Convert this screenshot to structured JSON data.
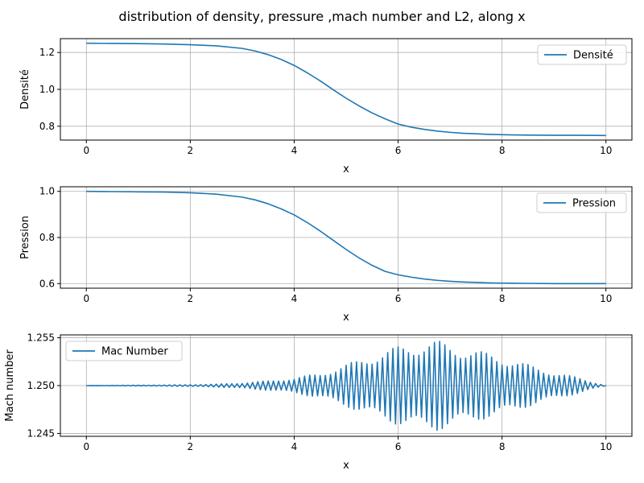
{
  "suptitle": "distribution of density, pressure ,mach number and L2, along x",
  "colors": {
    "line": "#1f77b4",
    "grid": "#b0b0b0",
    "axes": "#000000"
  },
  "chart_data": [
    {
      "type": "line",
      "xlabel": "x",
      "ylabel": "Densité",
      "xlim": [
        -0.5,
        10.5
      ],
      "ylim": [
        0.725,
        1.275
      ],
      "xticks": [
        0,
        2,
        4,
        6,
        8,
        10
      ],
      "xtick_labels": [
        "0",
        "2",
        "4",
        "6",
        "8",
        "10"
      ],
      "yticks": [
        0.8,
        1.0,
        1.2
      ],
      "ytick_labels": [
        "0.8",
        "1.0",
        "1.2"
      ],
      "grid": true,
      "legend_position": "upper right",
      "series": [
        {
          "name": "Densité",
          "x": [
            0,
            0.5,
            1,
            1.5,
            2,
            2.5,
            3,
            3.25,
            3.5,
            3.75,
            4,
            4.25,
            4.5,
            4.75,
            5,
            5.25,
            5.5,
            5.75,
            6,
            6.25,
            6.5,
            6.75,
            7,
            7.25,
            7.5,
            7.75,
            8,
            8.5,
            9,
            9.5,
            10
          ],
          "y": [
            1.25,
            1.249,
            1.248,
            1.246,
            1.242,
            1.236,
            1.222,
            1.208,
            1.188,
            1.162,
            1.13,
            1.09,
            1.046,
            0.998,
            0.952,
            0.91,
            0.872,
            0.84,
            0.812,
            0.795,
            0.783,
            0.774,
            0.767,
            0.762,
            0.759,
            0.756,
            0.754,
            0.752,
            0.751,
            0.751,
            0.75
          ]
        }
      ]
    },
    {
      "type": "line",
      "xlabel": "x",
      "ylabel": "Pression",
      "xlim": [
        -0.5,
        10.5
      ],
      "ylim": [
        0.58,
        1.02
      ],
      "xticks": [
        0,
        2,
        4,
        6,
        8,
        10
      ],
      "xtick_labels": [
        "0",
        "2",
        "4",
        "6",
        "8",
        "10"
      ],
      "yticks": [
        0.6,
        0.8,
        1.0
      ],
      "ytick_labels": [
        "0.6",
        "0.8",
        "1.0"
      ],
      "grid": true,
      "legend_position": "upper right",
      "series": [
        {
          "name": "Pression",
          "x": [
            0,
            0.5,
            1,
            1.5,
            2,
            2.5,
            3,
            3.25,
            3.5,
            3.75,
            4,
            4.25,
            4.5,
            4.75,
            5,
            5.25,
            5.5,
            5.75,
            6,
            6.25,
            6.5,
            6.75,
            7,
            7.25,
            7.5,
            7.75,
            8,
            8.5,
            9,
            9.5,
            10
          ],
          "y": [
            1.0,
            0.999,
            0.998,
            0.997,
            0.994,
            0.988,
            0.975,
            0.963,
            0.946,
            0.924,
            0.898,
            0.865,
            0.828,
            0.788,
            0.748,
            0.711,
            0.679,
            0.653,
            0.638,
            0.628,
            0.62,
            0.614,
            0.61,
            0.607,
            0.605,
            0.603,
            0.602,
            0.601,
            0.6,
            0.6,
            0.6
          ]
        }
      ]
    },
    {
      "type": "line",
      "xlabel": "x",
      "ylabel": "Mach number",
      "xlim": [
        -0.5,
        10.5
      ],
      "ylim": [
        1.2447,
        1.2553
      ],
      "xticks": [
        0,
        2,
        4,
        6,
        8,
        10
      ],
      "xtick_labels": [
        "0",
        "2",
        "4",
        "6",
        "8",
        "10"
      ],
      "yticks": [
        1.245,
        1.25,
        1.255
      ],
      "ytick_labels": [
        "1.245",
        "1.250",
        "1.255"
      ],
      "grid": true,
      "legend_position": "upper left",
      "series": [
        {
          "name": "Mac Number",
          "x": [
            0,
            0.5,
            1,
            1.5,
            2,
            2.5,
            3,
            3.5,
            4,
            4.5,
            5,
            5.5,
            6,
            6.5,
            6.75,
            7,
            7.5,
            8,
            8.5,
            9,
            9.5,
            9.8,
            10
          ],
          "oscillation_amplitude": [
            0,
            2e-05,
            4e-05,
            6e-05,
            0.0001,
            0.00015,
            0.0003,
            0.0005,
            0.0008,
            0.0013,
            0.0022,
            0.0032,
            0.0041,
            0.0046,
            0.0047,
            0.0043,
            0.0037,
            0.003,
            0.0022,
            0.0014,
            0.0008,
            0.0003,
            0.0
          ],
          "mean": 1.25
        }
      ]
    }
  ]
}
